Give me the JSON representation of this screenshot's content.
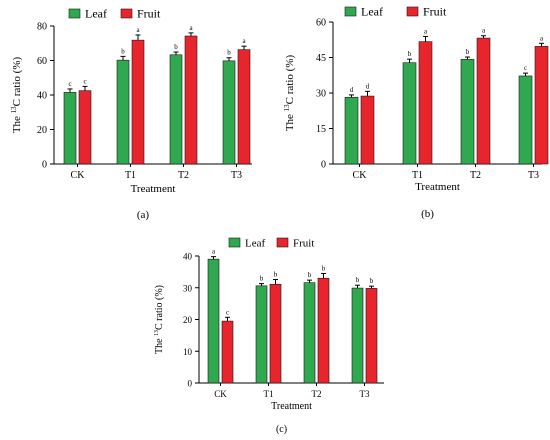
{
  "colors": {
    "leaf": "#2fa84f",
    "fruit": "#e8242c",
    "axis": "#000000"
  },
  "chart_data": [
    {
      "type": "bar",
      "panel_label": "(a)",
      "categories": [
        "CK",
        "T1",
        "T2",
        "T3"
      ],
      "xlabel": "Treatment",
      "ylabel_prefix": "The ",
      "ylabel_sup": "13",
      "ylabel_suffix": "C ratio (%)",
      "ylim": [
        0,
        80
      ],
      "yticks": [
        0,
        20,
        40,
        60,
        80
      ],
      "legend_position": "top-left",
      "series": [
        {
          "name": "Leaf",
          "color": "#2fa84f",
          "values": [
            41.5,
            60.2,
            63.3,
            59.8
          ],
          "errors": [
            2.0,
            2.2,
            1.6,
            1.8
          ],
          "letters": [
            "c",
            "b",
            "b",
            "b"
          ]
        },
        {
          "name": "Fruit",
          "color": "#e8242c",
          "values": [
            42.5,
            71.8,
            74.2,
            66.3
          ],
          "errors": [
            2.5,
            3.0,
            1.8,
            2.0
          ],
          "letters": [
            "c",
            "a",
            "a",
            "a"
          ]
        }
      ]
    },
    {
      "type": "bar",
      "panel_label": "(b)",
      "categories": [
        "CK",
        "T1",
        "T2",
        "T3"
      ],
      "xlabel": "Treatment",
      "ylabel_prefix": "The ",
      "ylabel_sup": "13",
      "ylabel_suffix": "C ratio (%)",
      "ylim": [
        0,
        60
      ],
      "yticks": [
        0,
        15,
        30,
        45,
        60
      ],
      "legend_position": "top-left",
      "series": [
        {
          "name": "Leaf",
          "color": "#2fa84f",
          "values": [
            28.2,
            42.8,
            44.2,
            37.2
          ],
          "errors": [
            1.0,
            1.5,
            1.0,
            1.2
          ],
          "letters": [
            "d",
            "b",
            "b",
            "c"
          ]
        },
        {
          "name": "Fruit",
          "color": "#e8242c",
          "values": [
            28.7,
            51.7,
            53.2,
            49.7
          ],
          "errors": [
            2.0,
            2.2,
            1.0,
            1.3
          ],
          "letters": [
            "d",
            "a",
            "a",
            "a"
          ]
        }
      ]
    },
    {
      "type": "bar",
      "panel_label": "(c)",
      "categories": [
        "CK",
        "T1",
        "T2",
        "T3"
      ],
      "xlabel": "Treatment",
      "ylabel_prefix": "The ",
      "ylabel_sup": "13",
      "ylabel_suffix": "C ratio (%)",
      "ylim": [
        0,
        40
      ],
      "yticks": [
        0,
        10,
        20,
        30,
        40
      ],
      "legend_position": "top-center",
      "series": [
        {
          "name": "Leaf",
          "color": "#2fa84f",
          "values": [
            39.0,
            30.6,
            31.6,
            29.9
          ],
          "errors": [
            0.8,
            0.7,
            0.8,
            0.9
          ],
          "letters": [
            "a",
            "b",
            "b",
            "b"
          ]
        },
        {
          "name": "Fruit",
          "color": "#e8242c",
          "values": [
            19.5,
            31.1,
            33.0,
            29.8
          ],
          "errors": [
            1.2,
            1.5,
            1.5,
            0.7
          ],
          "letters": [
            "c",
            "b",
            "b",
            "b"
          ]
        }
      ]
    }
  ]
}
